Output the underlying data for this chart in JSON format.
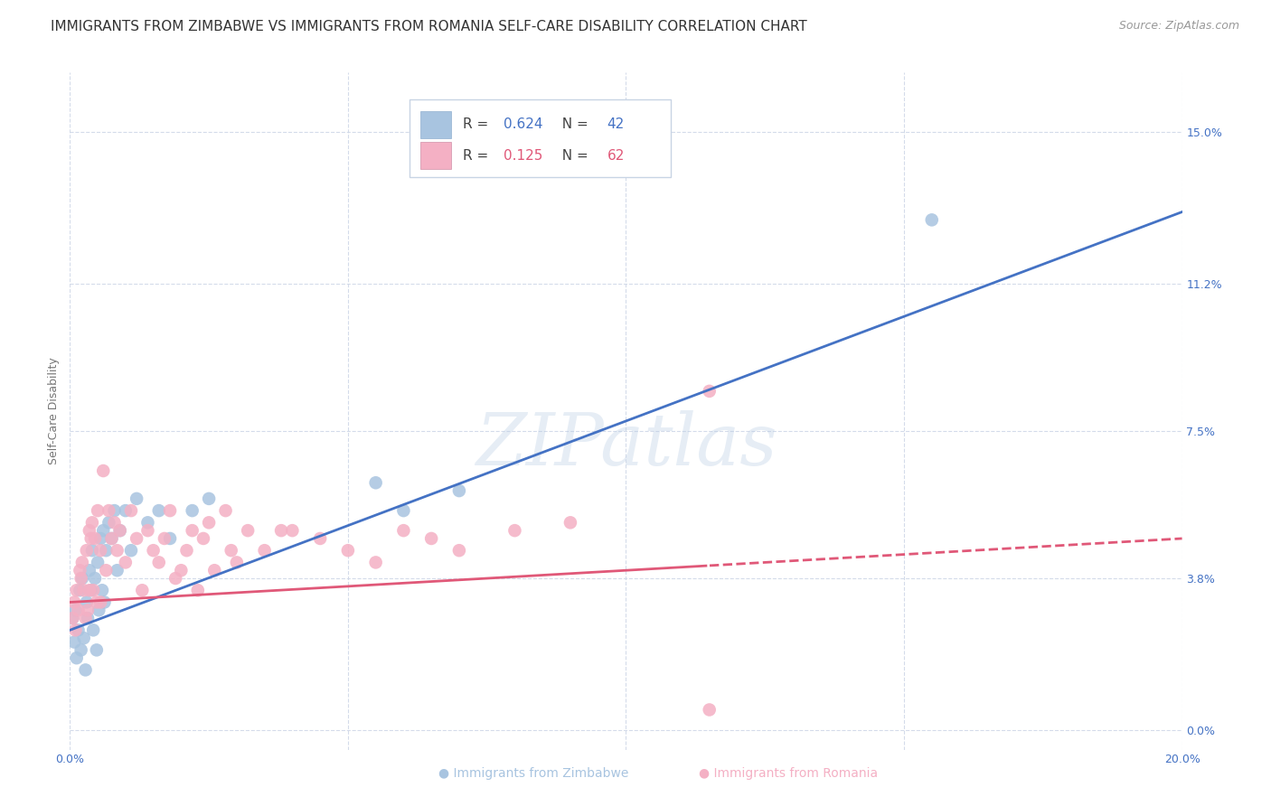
{
  "title": "IMMIGRANTS FROM ZIMBABWE VS IMMIGRANTS FROM ROMANIA SELF-CARE DISABILITY CORRELATION CHART",
  "source": "Source: ZipAtlas.com",
  "ylabel": "Self-Care Disability",
  "ytick_vals": [
    0.0,
    3.8,
    7.5,
    11.2,
    15.0
  ],
  "xtick_vals": [
    0.0,
    5.0,
    10.0,
    15.0,
    20.0
  ],
  "xlim": [
    0.0,
    20.0
  ],
  "ylim": [
    -0.5,
    16.5
  ],
  "r_zimbabwe": 0.624,
  "n_zimbabwe": 42,
  "r_romania": 0.125,
  "n_romania": 62,
  "color_zimbabwe": "#a8c4e0",
  "color_romania": "#f4b0c4",
  "color_blue_text": "#4472c4",
  "color_pink_text": "#e05878",
  "grid_color": "#d0d8e8",
  "background_color": "#ffffff",
  "title_fontsize": 11,
  "axis_label_fontsize": 9,
  "tick_fontsize": 9,
  "zimbabwe_scatter_x": [
    0.05,
    0.08,
    0.1,
    0.12,
    0.15,
    0.18,
    0.2,
    0.22,
    0.25,
    0.28,
    0.3,
    0.32,
    0.35,
    0.38,
    0.4,
    0.42,
    0.45,
    0.48,
    0.5,
    0.52,
    0.55,
    0.58,
    0.6,
    0.62,
    0.65,
    0.7,
    0.75,
    0.8,
    0.85,
    0.9,
    1.0,
    1.1,
    1.2,
    1.4,
    1.6,
    1.8,
    2.2,
    2.5,
    5.5,
    6.0,
    7.0,
    15.5
  ],
  "zimbabwe_scatter_y": [
    2.8,
    2.2,
    3.0,
    1.8,
    2.5,
    3.5,
    2.0,
    3.8,
    2.3,
    1.5,
    3.2,
    2.8,
    4.0,
    3.5,
    4.5,
    2.5,
    3.8,
    2.0,
    4.2,
    3.0,
    4.8,
    3.5,
    5.0,
    3.2,
    4.5,
    5.2,
    4.8,
    5.5,
    4.0,
    5.0,
    5.5,
    4.5,
    5.8,
    5.2,
    5.5,
    4.8,
    5.5,
    5.8,
    6.2,
    5.5,
    6.0,
    12.8
  ],
  "romania_scatter_x": [
    0.05,
    0.08,
    0.1,
    0.12,
    0.15,
    0.18,
    0.2,
    0.22,
    0.25,
    0.28,
    0.3,
    0.32,
    0.35,
    0.38,
    0.4,
    0.42,
    0.45,
    0.48,
    0.5,
    0.55,
    0.6,
    0.65,
    0.7,
    0.75,
    0.8,
    0.85,
    0.9,
    1.0,
    1.1,
    1.2,
    1.3,
    1.4,
    1.5,
    1.6,
    1.7,
    1.8,
    1.9,
    2.0,
    2.1,
    2.2,
    2.3,
    2.4,
    2.5,
    2.6,
    2.8,
    3.0,
    3.2,
    3.5,
    4.0,
    4.5,
    5.0,
    5.5,
    6.0,
    6.5,
    7.0,
    8.0,
    9.0,
    11.5,
    2.9,
    3.8,
    0.35,
    0.55
  ],
  "romania_scatter_y": [
    2.8,
    3.2,
    2.5,
    3.5,
    3.0,
    4.0,
    3.8,
    4.2,
    3.5,
    2.8,
    4.5,
    3.0,
    5.0,
    4.8,
    5.2,
    3.5,
    4.8,
    3.2,
    5.5,
    4.5,
    6.5,
    4.0,
    5.5,
    4.8,
    5.2,
    4.5,
    5.0,
    4.2,
    5.5,
    4.8,
    3.5,
    5.0,
    4.5,
    4.2,
    4.8,
    5.5,
    3.8,
    4.0,
    4.5,
    5.0,
    3.5,
    4.8,
    5.2,
    4.0,
    5.5,
    4.2,
    5.0,
    4.5,
    5.0,
    4.8,
    4.5,
    4.2,
    5.0,
    4.8,
    4.5,
    5.0,
    5.2,
    8.5,
    4.5,
    5.0,
    3.5,
    3.2
  ],
  "romania_outlier_x": 11.5,
  "romania_outlier_y": 0.5
}
